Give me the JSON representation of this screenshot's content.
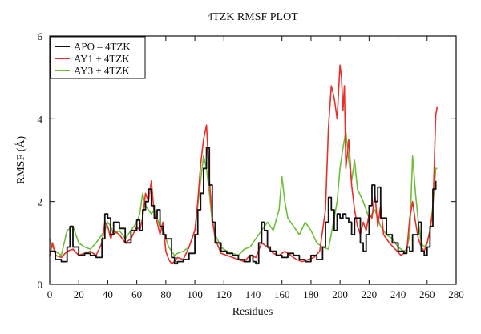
{
  "chart_data": {
    "type": "line",
    "title": "4TZK RMSF PLOT",
    "xlabel": "Residues",
    "ylabel": "RMSF (Å)",
    "xlim": [
      0,
      280
    ],
    "ylim": [
      0,
      6
    ],
    "xticks": [
      0,
      20,
      40,
      60,
      80,
      100,
      120,
      140,
      160,
      180,
      200,
      220,
      240,
      260,
      280
    ],
    "yticks": [
      0,
      2,
      4,
      6
    ],
    "grid": false,
    "legend_position": "top-left",
    "series": [
      {
        "name": "APO – 4TZK",
        "color": "#111111",
        "step": true,
        "x": [
          0,
          4,
          8,
          12,
          14,
          16,
          20,
          24,
          28,
          32,
          36,
          38,
          40,
          42,
          44,
          48,
          52,
          56,
          60,
          62,
          64,
          66,
          68,
          70,
          72,
          74,
          76,
          78,
          80,
          84,
          86,
          88,
          92,
          96,
          100,
          102,
          104,
          106,
          108,
          110,
          112,
          114,
          118,
          122,
          126,
          130,
          134,
          138,
          140,
          142,
          144,
          146,
          148,
          150,
          152,
          156,
          160,
          164,
          168,
          172,
          176,
          180,
          184,
          188,
          190,
          192,
          194,
          196,
          198,
          200,
          202,
          204,
          206,
          208,
          210,
          214,
          216,
          218,
          220,
          222,
          224,
          226,
          228,
          232,
          236,
          240,
          244,
          246,
          248,
          250,
          254,
          256,
          258,
          260,
          262,
          264,
          266
        ],
        "y": [
          0.8,
          0.6,
          0.55,
          0.9,
          1.4,
          0.9,
          0.7,
          0.75,
          0.7,
          0.65,
          1.1,
          1.7,
          1.6,
          1.2,
          1.5,
          1.35,
          1.0,
          1.3,
          1.55,
          1.3,
          1.8,
          2.0,
          2.3,
          1.9,
          1.6,
          1.8,
          1.4,
          1.2,
          1.1,
          0.65,
          0.5,
          0.55,
          0.6,
          0.75,
          1.2,
          1.8,
          2.2,
          2.8,
          3.3,
          2.4,
          1.5,
          1.0,
          0.8,
          0.75,
          0.7,
          0.6,
          0.55,
          0.7,
          0.55,
          0.5,
          1.0,
          1.5,
          1.3,
          0.9,
          0.8,
          0.7,
          0.65,
          0.75,
          0.7,
          0.6,
          0.55,
          0.7,
          0.6,
          0.9,
          1.5,
          2.1,
          1.8,
          1.3,
          1.7,
          1.6,
          1.7,
          1.6,
          1.5,
          1.2,
          1.6,
          1.0,
          0.8,
          1.2,
          1.9,
          2.4,
          2.0,
          2.35,
          1.6,
          1.2,
          1.0,
          0.8,
          0.75,
          0.9,
          0.8,
          1.2,
          1.5,
          0.8,
          0.7,
          0.9,
          1.4,
          2.3,
          2.5
        ]
      },
      {
        "name": "AY1 + 4TZK",
        "color": "#e8302a",
        "step": false,
        "x": [
          0,
          2,
          4,
          8,
          12,
          16,
          20,
          24,
          28,
          32,
          36,
          38,
          40,
          42,
          44,
          48,
          52,
          56,
          60,
          62,
          64,
          66,
          68,
          70,
          72,
          74,
          76,
          78,
          80,
          82,
          84,
          86,
          88,
          92,
          96,
          100,
          102,
          104,
          106,
          108,
          110,
          112,
          114,
          118,
          122,
          126,
          130,
          134,
          138,
          142,
          146,
          150,
          154,
          158,
          162,
          166,
          170,
          174,
          178,
          182,
          186,
          190,
          192,
          194,
          196,
          198,
          200,
          201,
          202,
          203,
          204,
          206,
          208,
          210,
          212,
          214,
          216,
          218,
          220,
          222,
          224,
          226,
          228,
          230,
          234,
          238,
          242,
          246,
          248,
          250,
          252,
          254,
          256,
          258,
          260,
          262,
          264,
          266,
          267
        ],
        "y": [
          0.7,
          1.0,
          0.7,
          0.65,
          0.8,
          0.85,
          0.7,
          0.75,
          0.8,
          0.7,
          1.0,
          1.5,
          1.4,
          1.1,
          1.3,
          1.2,
          1.0,
          1.1,
          1.4,
          1.3,
          1.6,
          2.2,
          2.0,
          2.5,
          1.7,
          1.5,
          1.2,
          1.5,
          0.8,
          0.6,
          0.5,
          0.55,
          0.65,
          0.6,
          0.9,
          1.3,
          2.0,
          2.9,
          3.5,
          3.85,
          2.5,
          1.6,
          1.1,
          0.75,
          0.7,
          0.65,
          0.6,
          0.55,
          0.7,
          0.65,
          1.0,
          0.9,
          0.75,
          0.7,
          0.8,
          0.7,
          0.6,
          0.55,
          0.6,
          0.65,
          0.8,
          1.8,
          3.8,
          4.8,
          4.5,
          4.0,
          5.3,
          5.0,
          4.2,
          4.8,
          2.8,
          3.5,
          2.4,
          1.8,
          1.4,
          1.2,
          1.5,
          1.3,
          1.7,
          1.6,
          2.2,
          1.4,
          1.9,
          1.2,
          1.0,
          0.85,
          0.7,
          0.8,
          1.6,
          2.0,
          1.5,
          1.1,
          0.9,
          0.8,
          1.0,
          1.3,
          1.8,
          4.1,
          4.3
        ]
      },
      {
        "name": "AY3 + 4TZK",
        "color": "#6fbe3a",
        "step": false,
        "x": [
          0,
          2,
          4,
          8,
          12,
          16,
          20,
          24,
          28,
          32,
          36,
          38,
          40,
          42,
          44,
          48,
          52,
          56,
          60,
          62,
          64,
          66,
          68,
          70,
          72,
          74,
          76,
          78,
          80,
          82,
          84,
          86,
          88,
          92,
          96,
          100,
          102,
          104,
          106,
          108,
          110,
          112,
          114,
          118,
          122,
          126,
          130,
          134,
          138,
          142,
          146,
          150,
          154,
          158,
          160,
          162,
          164,
          168,
          172,
          176,
          180,
          184,
          188,
          192,
          196,
          198,
          200,
          202,
          204,
          206,
          208,
          210,
          212,
          216,
          220,
          224,
          228,
          232,
          236,
          240,
          244,
          246,
          248,
          250,
          252,
          254,
          256,
          258,
          260,
          262,
          264,
          266,
          267
        ],
        "y": [
          1.1,
          0.9,
          0.8,
          0.7,
          1.3,
          1.4,
          1.0,
          0.9,
          0.85,
          1.0,
          1.2,
          1.3,
          1.5,
          1.4,
          1.2,
          1.3,
          1.1,
          1.3,
          1.5,
          1.7,
          2.2,
          1.9,
          1.8,
          1.7,
          1.8,
          1.6,
          1.4,
          1.3,
          1.1,
          0.9,
          0.8,
          0.7,
          0.75,
          0.8,
          0.9,
          1.3,
          1.9,
          2.5,
          3.1,
          2.8,
          2.2,
          1.5,
          1.2,
          0.9,
          0.8,
          0.75,
          0.7,
          0.85,
          0.9,
          1.1,
          1.3,
          1.5,
          1.3,
          1.8,
          2.6,
          2.0,
          1.6,
          1.4,
          1.2,
          1.5,
          1.3,
          1.0,
          0.9,
          0.85,
          1.6,
          2.0,
          2.8,
          3.3,
          3.7,
          3.0,
          2.5,
          3.0,
          2.3,
          2.0,
          1.6,
          1.8,
          1.4,
          1.2,
          1.1,
          0.9,
          0.8,
          0.85,
          1.2,
          3.1,
          2.2,
          1.5,
          1.0,
          0.9,
          1.0,
          1.3,
          1.9,
          2.8,
          2.8
        ]
      }
    ]
  }
}
